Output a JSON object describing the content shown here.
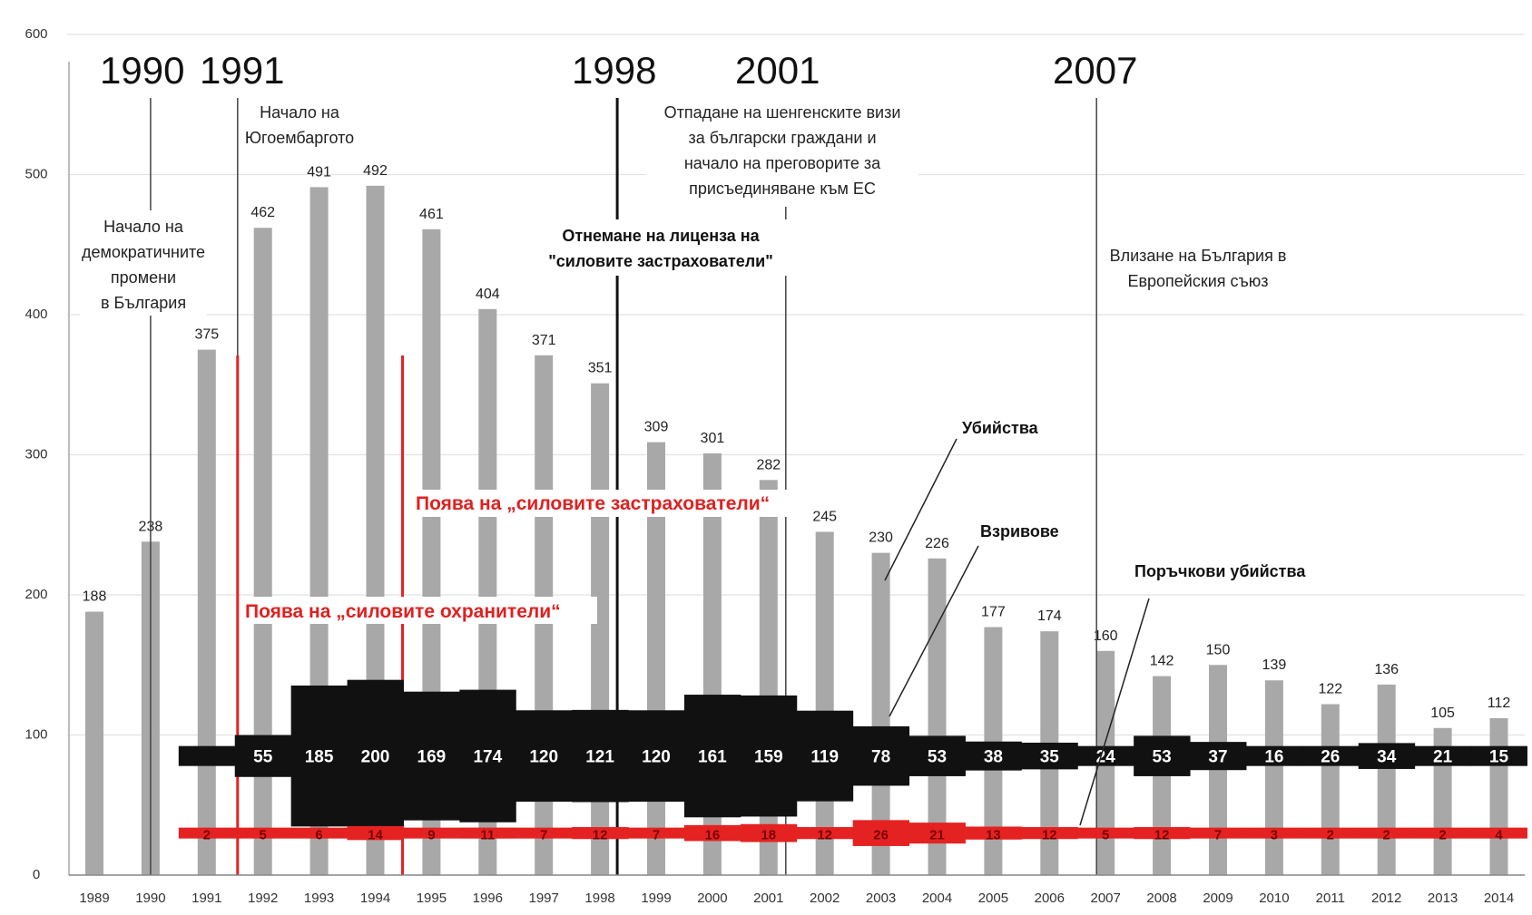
{
  "chart_data": {
    "type": "bar",
    "categories": [
      "1989",
      "1990",
      "1991",
      "1992",
      "1993",
      "1994",
      "1995",
      "1996",
      "1997",
      "1998",
      "1999",
      "2000",
      "2001",
      "2002",
      "2003",
      "2004",
      "2005",
      "2006",
      "2007",
      "2008",
      "2009",
      "2010",
      "2011",
      "2012",
      "2013",
      "2014"
    ],
    "ylim": [
      0,
      600
    ],
    "yticks": [
      "0",
      "100",
      "200",
      "300",
      "400",
      "500",
      "600"
    ],
    "grid": true,
    "series": [
      {
        "name": "Убийства",
        "color": "#a8a8a8",
        "values": [
          188,
          238,
          375,
          462,
          491,
          492,
          461,
          404,
          371,
          351,
          309,
          301,
          282,
          245,
          230,
          226,
          177,
          174,
          160,
          142,
          150,
          139,
          122,
          136,
          105,
          112
        ]
      },
      {
        "name": "Взривове",
        "color": "#111111",
        "start_category": "1991",
        "values": [
          null,
          null,
          null,
          55,
          185,
          200,
          169,
          174,
          120,
          121,
          120,
          161,
          159,
          119,
          78,
          53,
          38,
          35,
          24,
          53,
          37,
          16,
          26,
          34,
          21,
          15
        ]
      },
      {
        "name": "Поръчкови убийства",
        "color": "#e52222",
        "start_category": "1991",
        "values": [
          null,
          null,
          2,
          5,
          6,
          14,
          9,
          11,
          7,
          12,
          7,
          16,
          18,
          12,
          26,
          21,
          13,
          12,
          5,
          12,
          7,
          3,
          2,
          2,
          2,
          4
        ]
      }
    ],
    "year_markers": [
      {
        "year": "1990",
        "label": "1990",
        "note": [
          "Начало на",
          "демократичните",
          "промени",
          "в България"
        ]
      },
      {
        "year": "1991",
        "label": "1991",
        "note": [
          "Начало на",
          "Югоембаргото"
        ]
      },
      {
        "year": "1998",
        "label": "1998",
        "note": [
          "Отнемане на лиценза на",
          "\"силовите застрахователи\""
        ]
      },
      {
        "year": "2001",
        "label": "2001",
        "note": [
          "Отпадане на шенгенските визи",
          "за български граждани и",
          "начало на преговорите за",
          "присъединяване към ЕС"
        ]
      },
      {
        "year": "2007",
        "label": "2007",
        "note": [
          "Влизане на България в",
          "Европейския съюз"
        ]
      }
    ],
    "red_events": [
      {
        "label": "Поява на „силовите охранители“",
        "after_category": "1991"
      },
      {
        "label": "Поява на „силовите застрахователи“",
        "after_category": "1994"
      }
    ],
    "annotations": {
      "murders": "Убийства",
      "explosions": "Взривове",
      "contract_killings": "Поръчкови убийства"
    }
  }
}
